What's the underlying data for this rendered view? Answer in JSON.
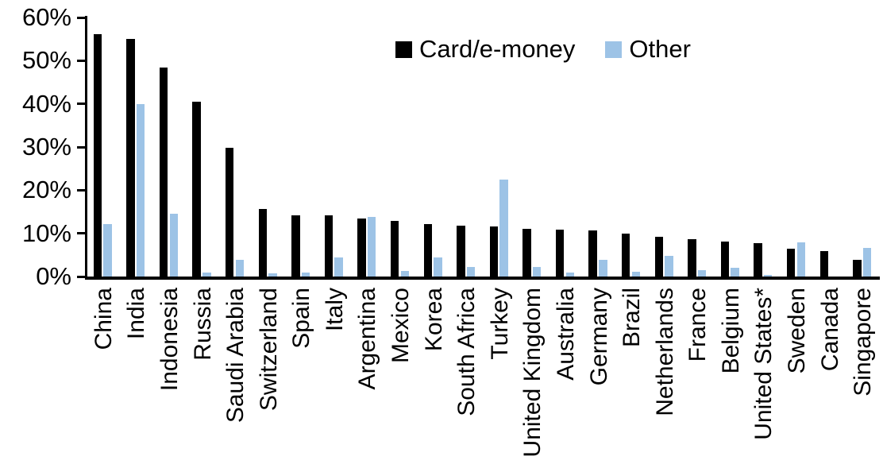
{
  "chart_data": {
    "type": "bar",
    "title": "",
    "xlabel": "",
    "ylabel": "",
    "ylim": [
      0,
      60
    ],
    "ytick_step": 10,
    "ytick_labels": [
      "0%",
      "10%",
      "20%",
      "30%",
      "40%",
      "50%",
      "60%"
    ],
    "grid": false,
    "legend_position": "top-center",
    "categories": [
      "China",
      "India",
      "Indonesia",
      "Russia",
      "Saudi Arabia",
      "Switzerland",
      "Spain",
      "Italy",
      "Argentina",
      "Mexico",
      "Korea",
      "South Africa",
      "Turkey",
      "United Kingdom",
      "Australia",
      "Germany",
      "Brazil",
      "Netherlands",
      "France",
      "Belgium",
      "United States*",
      "Sweden",
      "Canada",
      "Singapore"
    ],
    "series": [
      {
        "name": "Card/e-money",
        "color": "#000000",
        "values": [
          56.2,
          55.0,
          48.4,
          40.5,
          29.9,
          15.6,
          14.2,
          14.1,
          13.4,
          12.9,
          12.2,
          11.7,
          11.6,
          11.1,
          10.8,
          10.6,
          10.0,
          9.2,
          8.7,
          8.1,
          7.8,
          6.4,
          5.9,
          3.8
        ]
      },
      {
        "name": "Other",
        "color": "#9DC3E6",
        "values": [
          12.2,
          39.9,
          14.5,
          1.0,
          3.9,
          0.8,
          1.0,
          4.5,
          13.8,
          1.3,
          4.5,
          2.3,
          22.5,
          2.3,
          1.0,
          3.9,
          1.1,
          4.8,
          1.5,
          2.1,
          0.3,
          7.9,
          0.0,
          6.7
        ]
      }
    ],
    "axis_color": "#000000",
    "background_color": "#ffffff"
  }
}
